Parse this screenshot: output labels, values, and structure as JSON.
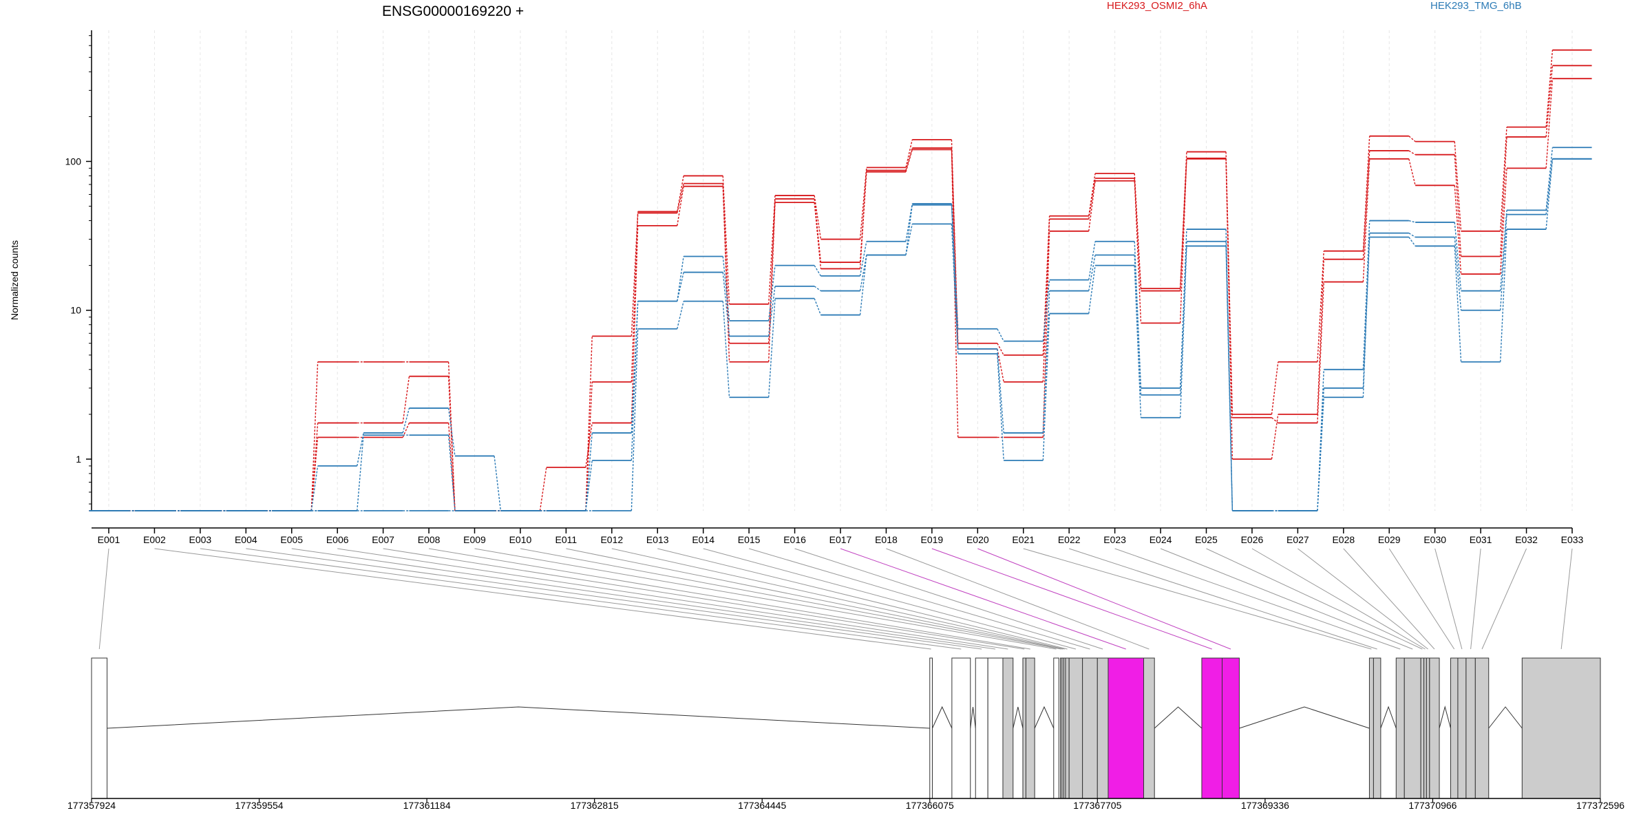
{
  "chart_data": {
    "type": "line",
    "title": "ENSG00000169220 +",
    "ylabel": "Normalized counts",
    "yscale": "log",
    "ylim": [
      0.45,
      760
    ],
    "yticks": [
      1,
      10,
      100
    ],
    "ytick_labels": [
      "1",
      "10",
      "100"
    ],
    "legend": [
      {
        "name": "HEK293_OSMI2_6hA",
        "color": "#d7191c"
      },
      {
        "name": "HEK293_TMG_6hB",
        "color": "#2c7bb6"
      }
    ],
    "categories": [
      "E001",
      "E002",
      "E003",
      "E004",
      "E005",
      "E006",
      "E007",
      "E008",
      "E009",
      "E010",
      "E011",
      "E012",
      "E013",
      "E014",
      "E015",
      "E016",
      "E017",
      "E018",
      "E019",
      "E020",
      "E021",
      "E022",
      "E023",
      "E024",
      "E025",
      "E026",
      "E027",
      "E028",
      "E029",
      "E030",
      "E031",
      "E032",
      "E033"
    ],
    "series": [
      {
        "group": "HEK293_OSMI2_6hA",
        "color": "#d7191c",
        "values": [
          0.45,
          0.45,
          0.45,
          0.45,
          0.45,
          4.5,
          4.5,
          4.5,
          0.45,
          0.45,
          0.45,
          6.7,
          46,
          80,
          11,
          59,
          30,
          91,
          140,
          6,
          5,
          43,
          83,
          14,
          116,
          2,
          4.5,
          25,
          148,
          136,
          34,
          170,
          560
        ]
      },
      {
        "group": "HEK293_OSMI2_6hA",
        "color": "#d7191c",
        "values": [
          0.45,
          0.45,
          0.45,
          0.45,
          0.45,
          1.75,
          1.75,
          3.6,
          0.45,
          0.45,
          0.45,
          3.3,
          45,
          71,
          6,
          56,
          21,
          87,
          123,
          5.5,
          3.3,
          41,
          77,
          8.2,
          105,
          1,
          2,
          22,
          118,
          111,
          23,
          146,
          440
        ]
      },
      {
        "group": "HEK293_OSMI2_6hA",
        "color": "#d7191c",
        "values": [
          0.45,
          0.45,
          0.45,
          0.45,
          0.45,
          1.4,
          1.4,
          1.75,
          0.45,
          0.45,
          0.88,
          1.75,
          37,
          68,
          4.5,
          53,
          19,
          85,
          120,
          1.4,
          1.4,
          34,
          74,
          13.5,
          104,
          1.9,
          1.75,
          15.5,
          104,
          69,
          17.5,
          90,
          360
        ]
      },
      {
        "group": "HEK293_TMG_6hB",
        "color": "#2c7bb6",
        "values": [
          0.45,
          0.45,
          0.45,
          0.45,
          0.45,
          0.9,
          1.5,
          2.2,
          1.05,
          0.45,
          0.45,
          1.5,
          11.5,
          23,
          8.5,
          20,
          17,
          29,
          52,
          7.5,
          6.2,
          16,
          29,
          3,
          35,
          0.45,
          0.45,
          4,
          40,
          39,
          13.5,
          47,
          124
        ]
      },
      {
        "group": "HEK293_TMG_6hB",
        "color": "#2c7bb6",
        "values": [
          0.45,
          0.45,
          0.45,
          0.45,
          0.45,
          0.45,
          1.45,
          1.45,
          0.45,
          0.45,
          0.45,
          0.98,
          11.5,
          18,
          6.7,
          14.5,
          13.5,
          23.5,
          51,
          5.5,
          1.5,
          13.5,
          23.5,
          2.7,
          29,
          0.45,
          0.45,
          2.6,
          33,
          31,
          10,
          44,
          104
        ]
      },
      {
        "group": "HEK293_TMG_6hB",
        "color": "#2c7bb6",
        "values": [
          0.45,
          0.45,
          0.45,
          0.45,
          0.45,
          0.45,
          0.45,
          0.45,
          0.45,
          0.45,
          0.45,
          0.45,
          7.5,
          11.5,
          2.6,
          12,
          9.3,
          23.5,
          38,
          5.1,
          0.98,
          9.5,
          20,
          1.9,
          27,
          0.45,
          0.45,
          3,
          31,
          27,
          4.5,
          35,
          104
        ]
      }
    ],
    "genomic_coordinates": [
      "177357924",
      "177359554",
      "177361184",
      "177362815",
      "177364445",
      "177366075",
      "177367705",
      "177369336",
      "177370966",
      "177372596"
    ],
    "genomic_range": [
      177357924,
      177372596
    ],
    "highlight_color": "#f01ee6",
    "exons": [
      {
        "id": "E001",
        "start": 177357924,
        "end": 177358075,
        "fill": "white"
      },
      {
        "id": "E002",
        "start": 177366075,
        "end": 177366100,
        "fill": "white"
      },
      {
        "id": "E003",
        "start": 177366290,
        "end": 177366470,
        "fill": "white"
      },
      {
        "id": "E004",
        "start": 177366520,
        "end": 177366640,
        "fill": "white"
      },
      {
        "id": "E005",
        "start": 177366640,
        "end": 177366786,
        "fill": "white"
      },
      {
        "id": "E006",
        "start": 177366786,
        "end": 177366885,
        "fill": "gray"
      },
      {
        "id": "E007",
        "start": 177366980,
        "end": 177367010,
        "fill": "gray"
      },
      {
        "id": "E008",
        "start": 177367010,
        "end": 177367095,
        "fill": "gray"
      },
      {
        "id": "E009",
        "start": 177367280,
        "end": 177367330,
        "fill": "white"
      },
      {
        "id": "E010",
        "start": 177367345,
        "end": 177367360,
        "fill": "gray"
      },
      {
        "id": "E011",
        "start": 177367360,
        "end": 177367377,
        "fill": "gray"
      },
      {
        "id": "E012",
        "start": 177367377,
        "end": 177367395,
        "fill": "gray"
      },
      {
        "id": "E013",
        "start": 177367395,
        "end": 177367430,
        "fill": "gray"
      },
      {
        "id": "E014",
        "start": 177367430,
        "end": 177367560,
        "fill": "gray"
      },
      {
        "id": "E015",
        "start": 177367560,
        "end": 177367705,
        "fill": "gray"
      },
      {
        "id": "E016",
        "start": 177367705,
        "end": 177367810,
        "fill": "gray"
      },
      {
        "id": "E017",
        "start": 177367810,
        "end": 177368155,
        "fill": "highlight"
      },
      {
        "id": "E018",
        "start": 177368155,
        "end": 177368260,
        "fill": "gray"
      },
      {
        "id": "E019",
        "start": 177368720,
        "end": 177368918,
        "fill": "highlight"
      },
      {
        "id": "E020",
        "start": 177368918,
        "end": 177369085,
        "fill": "highlight"
      },
      {
        "id": "E021",
        "start": 177370350,
        "end": 177370390,
        "fill": "gray"
      },
      {
        "id": "E022",
        "start": 177370390,
        "end": 177370460,
        "fill": "gray"
      },
      {
        "id": "E023",
        "start": 177370610,
        "end": 177370690,
        "fill": "gray"
      },
      {
        "id": "E024",
        "start": 177370690,
        "end": 177370850,
        "fill": "gray"
      },
      {
        "id": "E025",
        "start": 177370850,
        "end": 177370880,
        "fill": "gray"
      },
      {
        "id": "E026",
        "start": 177370880,
        "end": 177370905,
        "fill": "gray"
      },
      {
        "id": "E027",
        "start": 177370905,
        "end": 177370935,
        "fill": "gray"
      },
      {
        "id": "E028",
        "start": 177370935,
        "end": 177371030,
        "fill": "gray"
      },
      {
        "id": "E029",
        "start": 177371140,
        "end": 177371210,
        "fill": "gray"
      },
      {
        "id": "E030",
        "start": 177371210,
        "end": 177371290,
        "fill": "gray"
      },
      {
        "id": "E031",
        "start": 177371290,
        "end": 177371380,
        "fill": "gray"
      },
      {
        "id": "E032",
        "start": 177371380,
        "end": 177371510,
        "fill": "gray"
      },
      {
        "id": "E033",
        "start": 177371835,
        "end": 177372596,
        "fill": "gray"
      }
    ]
  }
}
